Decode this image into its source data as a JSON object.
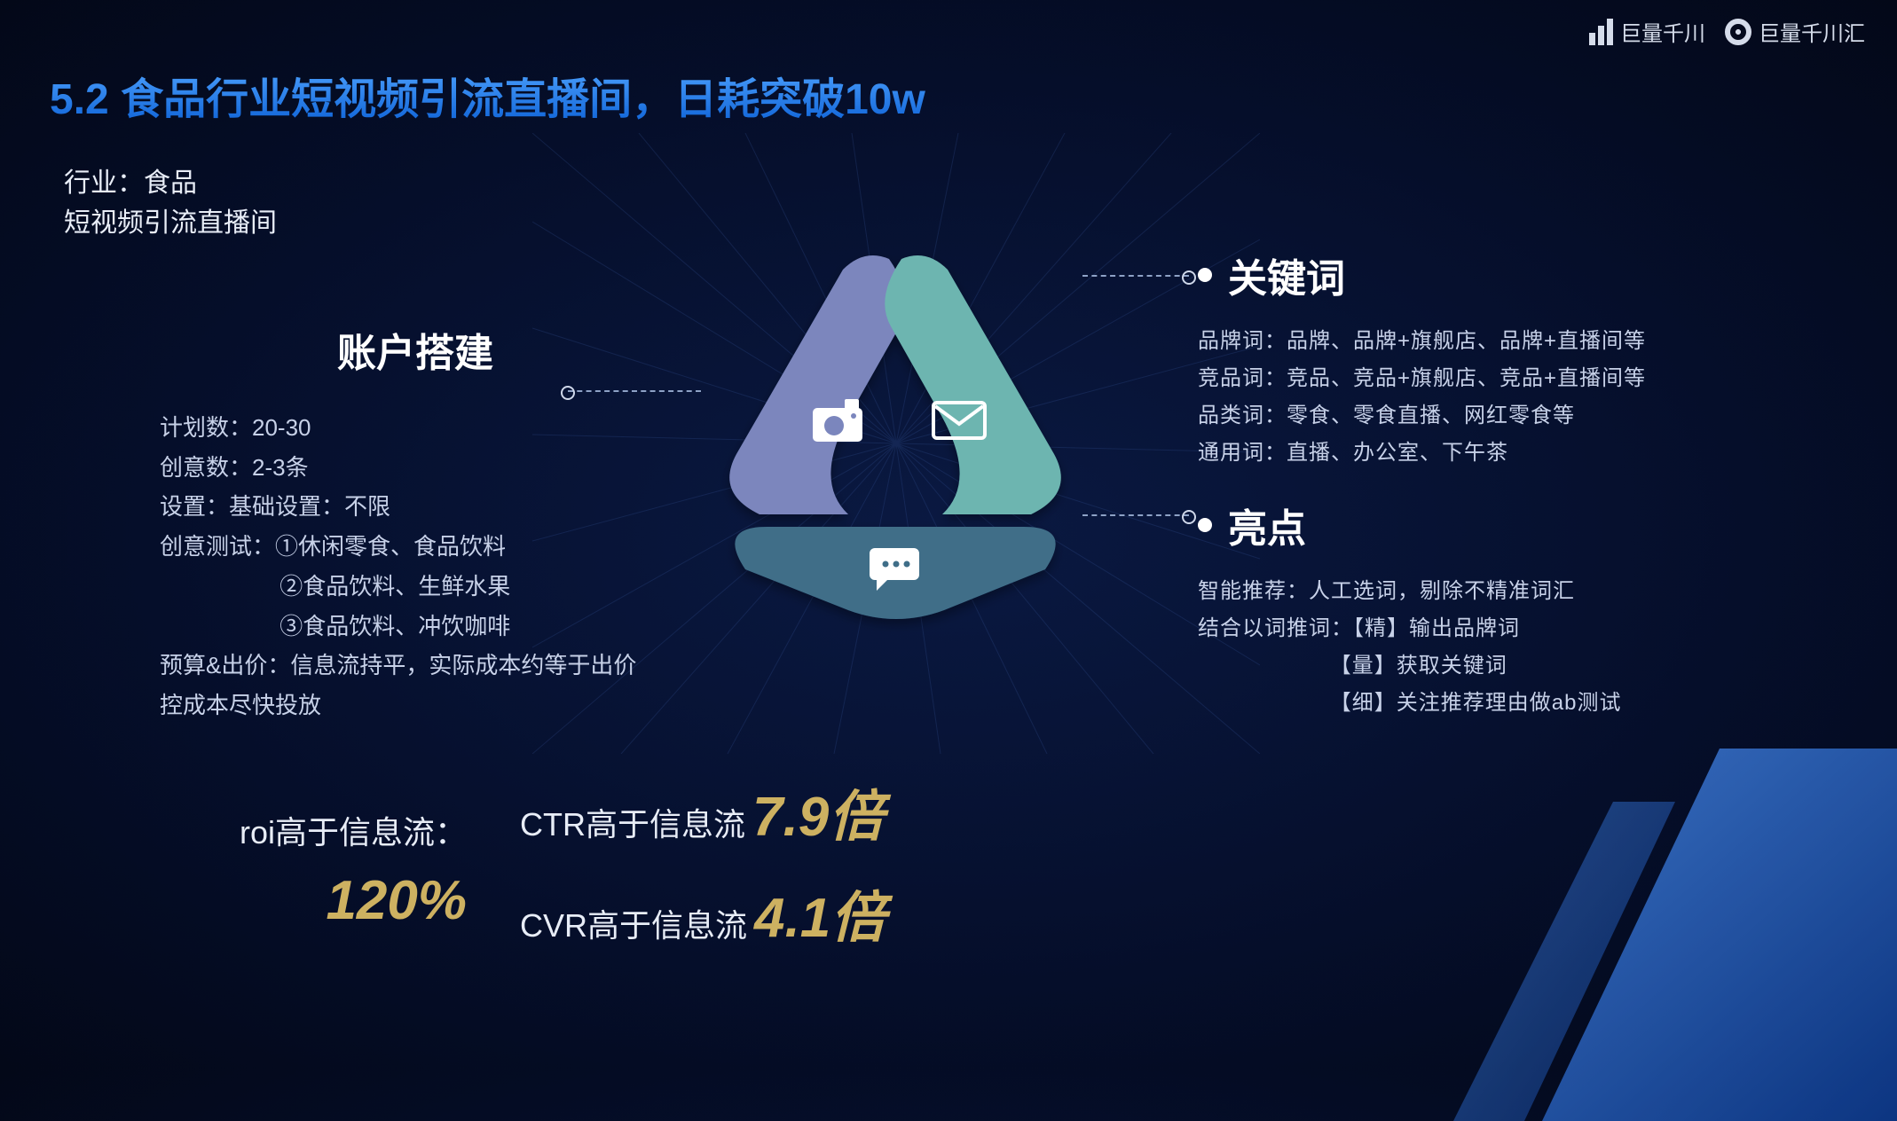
{
  "logos": {
    "left_text": "巨量千川",
    "right_text": "巨量千川汇"
  },
  "title": "5.2 食品行业短视频引流直播间，日耗突破10w",
  "subtitle_line1": "行业：食品",
  "subtitle_line2": "短视频引流直播间",
  "left_section": {
    "heading": "账户搭建",
    "lines": [
      "计划数：20-30",
      "创意数：2-3条",
      "设置：基础设置：不限",
      "创意测试：①休闲零食、食品饮料",
      "②食品饮料、生鲜水果",
      "③食品饮料、冲饮咖啡",
      "预算&出价：信息流持平，实际成本约等于出价",
      "控成本尽快投放"
    ],
    "indent_lines": [
      4,
      5
    ]
  },
  "right_section_1": {
    "heading": "关键词",
    "lines": [
      "品牌词：品牌、品牌+旗舰店、品牌+直播间等",
      "竞品词：竞品、竞品+旗舰店、竞品+直播间等",
      "品类词：零食、零食直播、网红零食等",
      "通用词：直播、办公室、下午茶"
    ]
  },
  "right_section_2": {
    "heading": "亮点",
    "lines": [
      "智能推荐：人工选词，剔除不精准词汇",
      "结合以词推词：【精】输出品牌词",
      "【量】获取关键词",
      "【细】关注推荐理由做ab测试"
    ],
    "indent_lines": [
      2,
      3
    ]
  },
  "diagram": {
    "type": "triangle-3-segment",
    "segments": [
      {
        "position": "top-left",
        "color": "#7b86bd",
        "icon": "camera"
      },
      {
        "position": "top-right",
        "color": "#6db5b0",
        "icon": "envelope"
      },
      {
        "position": "bottom",
        "color": "#3f6e88",
        "icon": "chat"
      }
    ],
    "icon_color": "#ffffff",
    "gap_color": "#e8edf7",
    "inner_hole_color": "#0a1942"
  },
  "metrics": {
    "roi": {
      "label": "roi高于信息流：",
      "value": "120%"
    },
    "ctr": {
      "label": "CTR高于信息流",
      "value": "7.9倍"
    },
    "cvr": {
      "label": "CVR高于信息流",
      "value": "4.1倍"
    },
    "highlight_color": "#cdb161",
    "label_color": "#e8edf7"
  },
  "palette": {
    "bg_center": "#0a1942",
    "bg_outer": "#030818",
    "title_gradient_top": "#4fa3ff",
    "title_gradient_bottom": "#0e62d6",
    "body_text": "#c7d1e8",
    "heading_text": "#ffffff",
    "slash_gradient_top": "#4a8ef0",
    "slash_gradient_bottom": "#0a3c9a"
  }
}
